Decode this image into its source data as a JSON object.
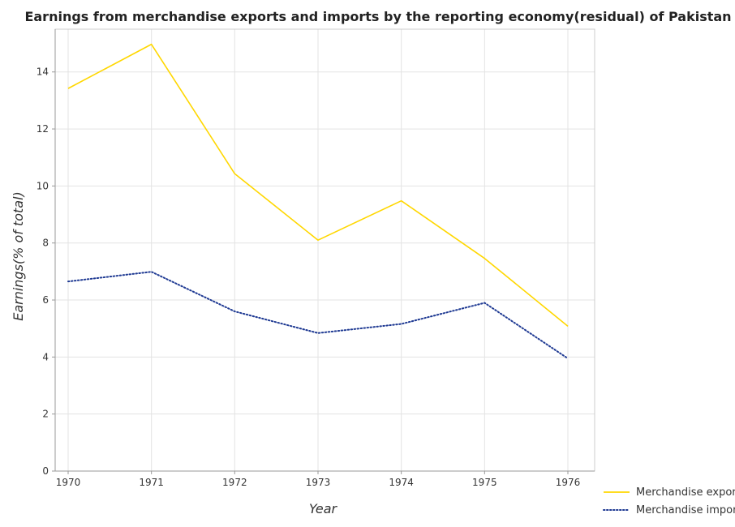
{
  "chart_data": {
    "type": "line",
    "title": "Earnings from merchandise exports and imports by the reporting economy(residual) of Pakistan",
    "xlabel": "Year",
    "ylabel": "Earnings(% of total)",
    "categories": [
      "1970",
      "1971",
      "1972",
      "1973",
      "1974",
      "1975",
      "1976"
    ],
    "ylim": [
      0,
      15.5
    ],
    "yticks": [
      0,
      2,
      4,
      6,
      8,
      10,
      12,
      14
    ],
    "ytick_labels": [
      "0",
      "2",
      "4",
      "6",
      "8",
      "10",
      "12",
      "14"
    ],
    "grid": true,
    "legend_position": "bottom-right",
    "series": [
      {
        "name": "Merchandise exports",
        "color": "#ffd700",
        "dash": "solid",
        "values": [
          13.42,
          14.97,
          10.43,
          8.1,
          9.48,
          7.46,
          5.08
        ]
      },
      {
        "name": "Merchandise imports",
        "color": "#1f3a93",
        "dash": "dotted",
        "values": [
          6.65,
          6.99,
          5.6,
          4.84,
          5.16,
          5.9,
          3.95
        ]
      }
    ]
  }
}
